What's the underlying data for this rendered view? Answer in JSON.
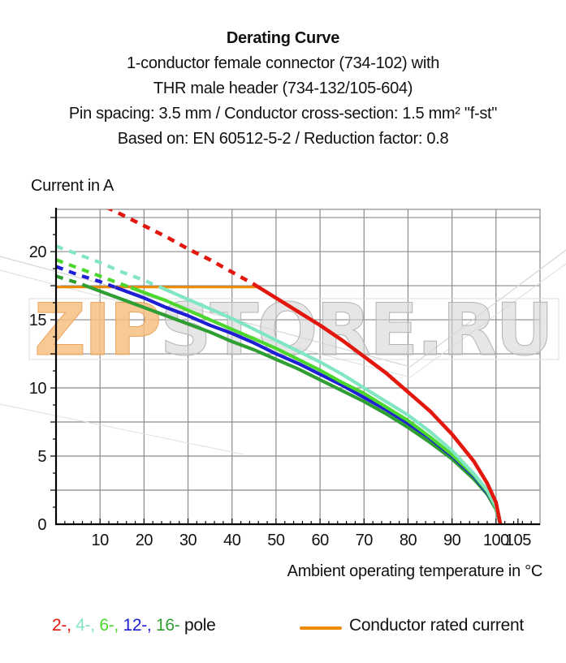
{
  "title_block": {
    "line1": "Derating Curve",
    "line2": "1-conductor female connector (734-102) with",
    "line3": "THR male header (734-132/105-604)",
    "line4": "Pin spacing: 3.5 mm / Conductor cross-section: 1.5 mm² \"f-st\"",
    "line5": "Based on: EN 60512-5-2 / Reduction factor: 0.8"
  },
  "chart_data": {
    "type": "line",
    "title": "Derating Curve",
    "ylabel": "Current in A",
    "xlabel": "Ambient operating temperature in °C",
    "xlim": [
      0,
      110
    ],
    "ylim": [
      0,
      23.1
    ],
    "grid": true,
    "grid_step": {
      "x": 10,
      "y": 2.5
    },
    "minor_tick_step": {
      "x": 2,
      "y": 1.25
    },
    "x_ticks_labeled": [
      10,
      20,
      30,
      40,
      50,
      60,
      70,
      80,
      90,
      100,
      105
    ],
    "y_ticks_labeled": [
      0,
      5,
      10,
      15,
      20
    ],
    "x": [
      0,
      5,
      10,
      15,
      20,
      25,
      30,
      35,
      40,
      45,
      50,
      55,
      60,
      65,
      70,
      75,
      80,
      85,
      90,
      95,
      98,
      100,
      101
    ],
    "series": [
      {
        "name": "2-pole",
        "color": "#e2180e",
        "dashed_until_c": 45.5,
        "values": [
          25.0,
          24.3,
          23.5,
          22.7,
          21.9,
          21.1,
          20.2,
          19.4,
          18.5,
          17.6,
          16.6,
          15.6,
          14.6,
          13.5,
          12.3,
          11.1,
          9.7,
          8.3,
          6.6,
          4.6,
          3.0,
          1.6,
          0
        ]
      },
      {
        "name": "4-pole",
        "color": "#82e6c3",
        "dashed_until_c": 23.5,
        "values": [
          20.4,
          19.8,
          19.2,
          18.5,
          17.9,
          17.2,
          16.5,
          15.8,
          15.1,
          14.3,
          13.5,
          12.7,
          11.9,
          11.0,
          10.0,
          9.0,
          8.0,
          6.8,
          5.4,
          3.7,
          2.5,
          1.3,
          0
        ]
      },
      {
        "name": "6-pole",
        "color": "#4cd72f",
        "dashed_until_c": 17.0,
        "values": [
          19.4,
          18.8,
          18.2,
          17.6,
          17.0,
          16.4,
          15.7,
          15.0,
          14.3,
          13.6,
          12.9,
          12.1,
          11.3,
          10.4,
          9.6,
          8.6,
          7.6,
          6.4,
          5.1,
          3.6,
          2.4,
          1.2,
          0
        ]
      },
      {
        "name": "12-pole",
        "color": "#1e1ed2",
        "dashed_until_c": 13.5,
        "values": [
          18.9,
          18.3,
          17.8,
          17.2,
          16.6,
          15.9,
          15.3,
          14.6,
          14.0,
          13.3,
          12.5,
          11.8,
          11.0,
          10.2,
          9.3,
          8.4,
          7.4,
          6.3,
          5.0,
          3.5,
          2.3,
          1.2,
          0
        ]
      },
      {
        "name": "16-pole",
        "color": "#2f9e33",
        "dashed_until_c": 7.5,
        "values": [
          18.2,
          17.7,
          17.1,
          16.5,
          15.9,
          15.3,
          14.7,
          14.1,
          13.4,
          12.8,
          12.1,
          11.4,
          10.6,
          9.8,
          9.0,
          8.1,
          7.1,
          6.0,
          4.8,
          3.3,
          2.2,
          1.1,
          0
        ]
      }
    ],
    "rated_current_line": {
      "label": "Conductor rated current",
      "value_a": 17.4,
      "span_c": [
        0,
        46
      ],
      "color": "#ef8a06"
    }
  },
  "legend": {
    "series": [
      {
        "label": "2-,",
        "color": "#e2180e"
      },
      {
        "label": "4-,",
        "color": "#82e6c3"
      },
      {
        "label": "6-,",
        "color": "#4cd72f"
      },
      {
        "label": "12-,",
        "color": "#1e1ed2"
      },
      {
        "label": "16-",
        "color": "#2f9e33"
      }
    ],
    "suffix": "pole",
    "rated": {
      "label": "Conductor rated current",
      "color": "#ef8a06"
    }
  },
  "watermark": {
    "text_orange": "ZIP",
    "text_gray": "STORE.RU",
    "orange": "#f6bf83",
    "gray": "#cccccc"
  }
}
